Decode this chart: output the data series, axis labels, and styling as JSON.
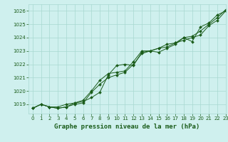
{
  "title": "Graphe pression niveau de la mer (hPa)",
  "background_color": "#cff0ee",
  "plot_bg_color": "#cff0ee",
  "grid_color": "#a8d8d0",
  "line_color": "#1a5c1a",
  "xlim": [
    -0.5,
    23
  ],
  "ylim": [
    1018.3,
    1026.5
  ],
  "yticks": [
    1019,
    1020,
    1021,
    1022,
    1023,
    1024,
    1025,
    1026
  ],
  "xticks": [
    0,
    1,
    2,
    3,
    4,
    5,
    6,
    7,
    8,
    9,
    10,
    11,
    12,
    13,
    14,
    15,
    16,
    17,
    18,
    19,
    20,
    21,
    22,
    23
  ],
  "series1": [
    1018.7,
    1019.0,
    1018.8,
    1018.8,
    1019.0,
    1019.1,
    1019.2,
    1019.5,
    1019.9,
    1021.2,
    1021.9,
    1022.0,
    1021.9,
    1022.9,
    1023.0,
    1022.9,
    1023.2,
    1023.5,
    1024.0,
    1023.7,
    1024.8,
    1025.1,
    1025.7,
    1026.0
  ],
  "series2": [
    1018.7,
    1019.0,
    1018.8,
    1018.7,
    1018.8,
    1019.0,
    1019.1,
    1019.9,
    1020.5,
    1021.0,
    1021.2,
    1021.4,
    1022.0,
    1022.8,
    1023.0,
    1023.2,
    1023.3,
    1023.6,
    1023.8,
    1024.0,
    1024.2,
    1024.9,
    1025.3,
    1026.0
  ],
  "series3": [
    1018.7,
    1019.0,
    1018.8,
    1018.7,
    1018.8,
    1019.1,
    1019.3,
    1020.0,
    1020.8,
    1021.3,
    1021.4,
    1021.5,
    1022.2,
    1023.0,
    1023.0,
    1023.2,
    1023.5,
    1023.6,
    1024.0,
    1024.1,
    1024.5,
    1025.0,
    1025.5,
    1026.1
  ],
  "ylabel_fontsize": 5.5,
  "xlabel_fontsize": 6.5,
  "tick_fontsize": 5
}
